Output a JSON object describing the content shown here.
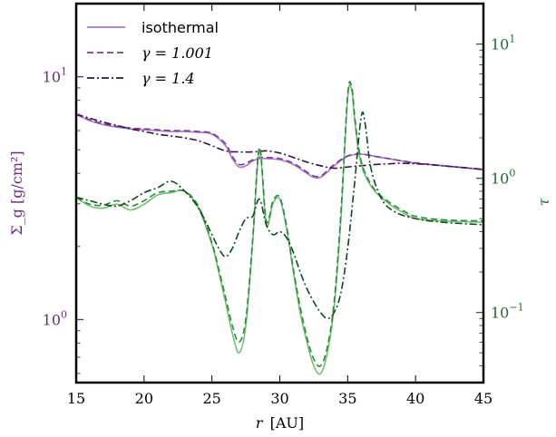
{
  "chart_data": {
    "type": "line",
    "xlabel": "r [AU]",
    "xlabel_var": "r",
    "xlabel_unit": "[AU]",
    "ylabel_left": "Σ_g [g/cm²]",
    "ylabel_right": "τ",
    "xlim": [
      15,
      45
    ],
    "ylim_left": [
      0.55,
      20
    ],
    "ylim_right": [
      0.03,
      20
    ],
    "yscale_left": "log",
    "yscale_right": "log",
    "x_ticks": [
      "15",
      "20",
      "25",
      "30",
      "35",
      "40",
      "45"
    ],
    "x_tick_values": [
      15,
      20,
      25,
      30,
      35,
      40,
      45
    ],
    "left_tick_labels": [
      {
        "value": 1,
        "base": "10",
        "exp": "0"
      },
      {
        "value": 10,
        "base": "10",
        "exp": "1"
      }
    ],
    "right_tick_labels": [
      {
        "value": 0.1,
        "base": "10",
        "exp": "−1"
      },
      {
        "value": 1,
        "base": "10",
        "exp": "0"
      },
      {
        "value": 10,
        "base": "10",
        "exp": "1"
      }
    ],
    "legend": {
      "position": "top-left",
      "entries": [
        {
          "label": "isothermal",
          "math": false,
          "style": "solid"
        },
        {
          "label": "γ = 1.001",
          "math": true,
          "style": "dashed"
        },
        {
          "label": "γ = 1.4",
          "math": true,
          "style": "dashdot"
        }
      ]
    },
    "colors": {
      "left_axis": "#6a2c80",
      "right_axis": "#1f6b30",
      "sigma_iso": "#a878c4",
      "sigma_1001": "#7a3e96",
      "sigma_14": "#3a0f4a",
      "tau_iso": "#6fc070",
      "tau_1001": "#2e8a3e",
      "tau_14": "#0d4a1c"
    },
    "series": [
      {
        "name": "isothermal",
        "axis": "left",
        "quantity": "sigma",
        "style": "solid",
        "x": [
          15,
          16,
          17,
          18,
          19,
          20,
          21,
          22,
          23,
          24,
          25,
          26,
          26.5,
          27,
          27.5,
          28,
          28.5,
          29,
          30,
          31,
          32,
          32.5,
          33,
          33.5,
          34,
          35,
          36,
          37,
          38,
          39,
          40,
          41,
          42,
          43,
          44,
          45
        ],
        "y": [
          7.0,
          6.6,
          6.35,
          6.2,
          6.1,
          6.05,
          6.0,
          5.95,
          5.95,
          5.9,
          5.8,
          5.2,
          4.6,
          4.25,
          4.3,
          4.5,
          4.6,
          4.6,
          4.55,
          4.35,
          4.0,
          3.85,
          3.85,
          4.05,
          4.3,
          4.7,
          4.8,
          4.7,
          4.6,
          4.5,
          4.4,
          4.35,
          4.3,
          4.25,
          4.2,
          4.15
        ]
      },
      {
        "name": "γ = 1.001",
        "axis": "left",
        "quantity": "sigma",
        "style": "dashed",
        "x": [
          15,
          16,
          17,
          18,
          19,
          20,
          21,
          22,
          23,
          24,
          25,
          26,
          26.5,
          27,
          27.5,
          28,
          28.5,
          29,
          30,
          31,
          32,
          32.5,
          33,
          33.5,
          34,
          35,
          36,
          37,
          38,
          39,
          40,
          41,
          42,
          43,
          44,
          45
        ],
        "y": [
          7.0,
          6.65,
          6.4,
          6.25,
          6.15,
          6.1,
          6.05,
          6.0,
          6.0,
          5.95,
          5.85,
          5.3,
          4.7,
          4.35,
          4.4,
          4.55,
          4.65,
          4.65,
          4.6,
          4.4,
          4.05,
          3.9,
          3.9,
          4.1,
          4.35,
          4.72,
          4.8,
          4.7,
          4.6,
          4.5,
          4.42,
          4.36,
          4.3,
          4.25,
          4.2,
          4.15
        ]
      },
      {
        "name": "γ = 1.4",
        "axis": "left",
        "quantity": "sigma",
        "style": "dashdot",
        "x": [
          15,
          16,
          17,
          18,
          19,
          20,
          21,
          22,
          23,
          24,
          25,
          26,
          27,
          28,
          29,
          30,
          31,
          32,
          33,
          34,
          35,
          36,
          37,
          38,
          39,
          40,
          41,
          42,
          43,
          44,
          45
        ],
        "y": [
          7.0,
          6.75,
          6.5,
          6.3,
          6.1,
          5.95,
          5.8,
          5.7,
          5.6,
          5.45,
          5.2,
          4.95,
          4.9,
          4.9,
          4.95,
          4.85,
          4.65,
          4.45,
          4.3,
          4.2,
          4.25,
          4.3,
          4.35,
          4.38,
          4.4,
          4.38,
          4.35,
          4.3,
          4.25,
          4.2,
          4.15
        ]
      },
      {
        "name": "isothermal",
        "axis": "right",
        "quantity": "tau",
        "style": "solid",
        "x": [
          15,
          16,
          17,
          18,
          19,
          20,
          21,
          22,
          23,
          24,
          25,
          25.5,
          26,
          26.5,
          27,
          27.5,
          28,
          28.5,
          29,
          29.5,
          30,
          30.5,
          31,
          31.5,
          32,
          32.5,
          33,
          33.5,
          34,
          34.5,
          35,
          35.3,
          35.5,
          35.8,
          36.2,
          37,
          38,
          39,
          40,
          42,
          45
        ],
        "y": [
          0.72,
          0.62,
          0.6,
          0.64,
          0.58,
          0.64,
          0.75,
          0.78,
          0.8,
          0.6,
          0.32,
          0.2,
          0.12,
          0.07,
          0.05,
          0.08,
          0.33,
          1.6,
          0.45,
          0.65,
          0.7,
          0.42,
          0.2,
          0.1,
          0.06,
          0.04,
          0.035,
          0.05,
          0.11,
          0.5,
          4.0,
          4.5,
          2.8,
          1.6,
          1.1,
          0.8,
          0.65,
          0.56,
          0.5,
          0.48,
          0.47
        ]
      },
      {
        "name": "γ = 1.001",
        "axis": "right",
        "quantity": "tau",
        "style": "dashed",
        "x": [
          15,
          16,
          17,
          18,
          19,
          20,
          21,
          22,
          23,
          24,
          25,
          25.5,
          26,
          26.5,
          27,
          27.5,
          28,
          28.5,
          29,
          29.5,
          30,
          30.5,
          31,
          31.5,
          32,
          32.5,
          33,
          33.5,
          34,
          34.5,
          35,
          35.3,
          35.5,
          35.8,
          36.2,
          37,
          38,
          39,
          40,
          42,
          45
        ],
        "y": [
          0.72,
          0.64,
          0.63,
          0.68,
          0.62,
          0.68,
          0.78,
          0.8,
          0.8,
          0.62,
          0.33,
          0.21,
          0.13,
          0.08,
          0.06,
          0.09,
          0.35,
          1.7,
          0.48,
          0.68,
          0.72,
          0.44,
          0.21,
          0.11,
          0.065,
          0.045,
          0.04,
          0.055,
          0.12,
          0.55,
          4.2,
          4.8,
          3.0,
          1.7,
          1.15,
          0.82,
          0.67,
          0.58,
          0.52,
          0.49,
          0.48
        ]
      },
      {
        "name": "γ = 1.4",
        "axis": "right",
        "quantity": "tau",
        "style": "dashdot",
        "x": [
          15,
          16,
          17,
          18,
          19,
          20,
          21,
          22,
          23,
          24,
          25,
          25.5,
          26,
          26.5,
          27,
          27.5,
          28,
          28.5,
          29,
          29.5,
          30,
          30.5,
          31,
          31.5,
          32,
          32.5,
          33,
          33.5,
          34,
          34.5,
          35,
          35.5,
          36,
          36.3,
          36.7,
          37.5,
          38.5,
          40,
          42,
          45
        ],
        "y": [
          0.72,
          0.68,
          0.64,
          0.62,
          0.68,
          0.78,
          0.85,
          0.95,
          0.8,
          0.6,
          0.38,
          0.3,
          0.26,
          0.3,
          0.4,
          0.5,
          0.52,
          0.7,
          0.45,
          0.38,
          0.4,
          0.36,
          0.28,
          0.2,
          0.15,
          0.12,
          0.1,
          0.09,
          0.1,
          0.14,
          0.3,
          0.9,
          2.9,
          2.5,
          1.2,
          0.7,
          0.56,
          0.5,
          0.47,
          0.45
        ]
      }
    ]
  }
}
